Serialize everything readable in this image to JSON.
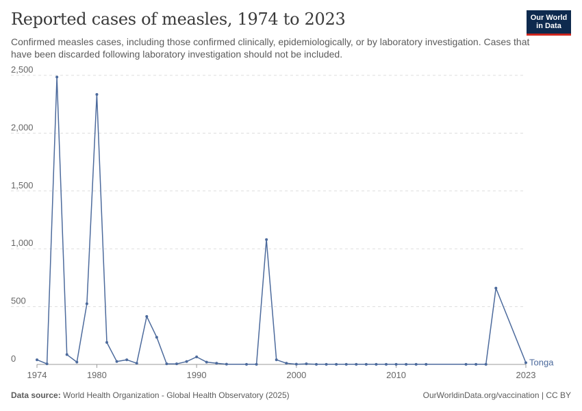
{
  "header": {
    "title": "Reported cases of measles, 1974 to 2023",
    "subtitle": "Confirmed measles cases, including those confirmed clinically, epidemiologically, or by laboratory investigation. Cases that have been discarded following laboratory investigation should not be included."
  },
  "logo": {
    "line1": "Our World",
    "line2": "in Data",
    "bg_color": "#0e2a4e",
    "accent_color": "#ce261e"
  },
  "footer": {
    "source_label": "Data source:",
    "source_text": "World Health Organization - Global Health Observatory (2025)",
    "right_text": "OurWorldinData.org/vaccination | CC BY"
  },
  "chart_data": {
    "type": "line",
    "title": "Reported cases of measles, 1974 to 2023",
    "xlabel": "",
    "ylabel": "",
    "xlim": [
      1974,
      2023
    ],
    "ylim": [
      0,
      2500
    ],
    "x_ticks": [
      "1974",
      "1980",
      "1990",
      "2000",
      "2010",
      "2023"
    ],
    "y_ticks": [
      "0",
      "500",
      "1,000",
      "1,500",
      "2,000",
      "2,500"
    ],
    "grid": "horizontal dashed",
    "series": [
      {
        "name": "Tonga",
        "color": "#4c6a9c",
        "points": [
          [
            1974,
            40
          ],
          [
            1975,
            5
          ],
          [
            1976,
            2485
          ],
          [
            1977,
            85
          ],
          [
            1978,
            20
          ],
          [
            1979,
            525
          ],
          [
            1980,
            2335
          ],
          [
            1981,
            190
          ],
          [
            1982,
            25
          ],
          [
            1983,
            40
          ],
          [
            1984,
            10
          ],
          [
            1985,
            415
          ],
          [
            1986,
            235
          ],
          [
            1987,
            5
          ],
          [
            1988,
            5
          ],
          [
            1989,
            25
          ],
          [
            1990,
            65
          ],
          [
            1991,
            20
          ],
          [
            1992,
            10
          ],
          [
            1993,
            2
          ],
          [
            1995,
            1
          ],
          [
            1996,
            1
          ],
          [
            1997,
            1080
          ],
          [
            1998,
            40
          ],
          [
            1999,
            10
          ],
          [
            2000,
            2
          ],
          [
            2001,
            5
          ],
          [
            2002,
            1
          ],
          [
            2003,
            1
          ],
          [
            2004,
            1
          ],
          [
            2005,
            1
          ],
          [
            2006,
            1
          ],
          [
            2007,
            1
          ],
          [
            2008,
            1
          ],
          [
            2009,
            1
          ],
          [
            2010,
            1
          ],
          [
            2011,
            1
          ],
          [
            2012,
            1
          ],
          [
            2013,
            1
          ],
          [
            2017,
            1
          ],
          [
            2018,
            1
          ],
          [
            2019,
            1
          ],
          [
            2020,
            660
          ],
          [
            2023,
            15
          ]
        ]
      }
    ]
  }
}
